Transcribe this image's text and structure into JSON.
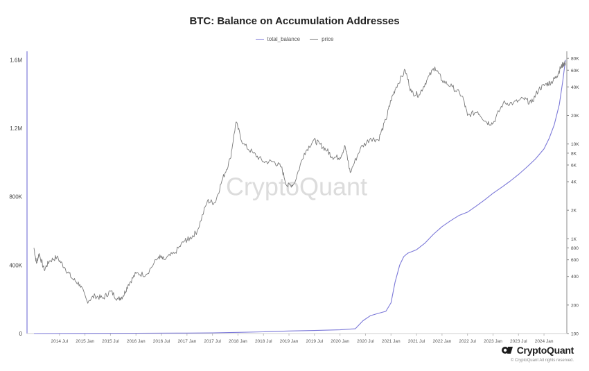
{
  "page": {
    "title": "BTC: Balance on Accumulation Addresses",
    "watermark": "CryptoQuant",
    "brand": {
      "name": "CryptoQuant",
      "copyright": "© CryptoQuant All rights reserved."
    }
  },
  "chart_data": {
    "type": "line",
    "title": "BTC: Balance on Accumulation Addresses",
    "legend_position": "top-center",
    "grid": false,
    "x_axis": {
      "range": [
        2014.0,
        2024.42
      ],
      "ticks": [
        {
          "label": "2014 Jul",
          "value": 2014.5
        },
        {
          "label": "2015 Jan",
          "value": 2015.0
        },
        {
          "label": "2015 Jul",
          "value": 2015.5
        },
        {
          "label": "2016 Jan",
          "value": 2016.0
        },
        {
          "label": "2016 Jul",
          "value": 2016.5
        },
        {
          "label": "2017 Jan",
          "value": 2017.0
        },
        {
          "label": "2017 Jul",
          "value": 2017.5
        },
        {
          "label": "2018 Jan",
          "value": 2018.0
        },
        {
          "label": "2018 Jul",
          "value": 2018.5
        },
        {
          "label": "2019 Jan",
          "value": 2019.0
        },
        {
          "label": "2019 Jul",
          "value": 2019.5
        },
        {
          "label": "2020 Jan",
          "value": 2020.0
        },
        {
          "label": "2020 Jul",
          "value": 2020.5
        },
        {
          "label": "2021 Jan",
          "value": 2021.0
        },
        {
          "label": "2021 Jul",
          "value": 2021.5
        },
        {
          "label": "2022 Jan",
          "value": 2022.0
        },
        {
          "label": "2022 Jul",
          "value": 2022.5
        },
        {
          "label": "2023 Jan",
          "value": 2023.0
        },
        {
          "label": "2023 Jul",
          "value": 2023.5
        },
        {
          "label": "2024 Jan",
          "value": 2024.0
        }
      ]
    },
    "y_left": {
      "scale": "linear",
      "range": [
        0,
        1650000
      ],
      "ticks": [
        {
          "label": "0",
          "value": 0
        },
        {
          "label": "400K",
          "value": 400000
        },
        {
          "label": "800K",
          "value": 800000
        },
        {
          "label": "1.2M",
          "value": 1200000
        },
        {
          "label": "1.6M",
          "value": 1600000
        }
      ]
    },
    "y_right": {
      "scale": "log",
      "range": [
        100,
        95000
      ],
      "ticks": [
        {
          "label": "100",
          "value": 100
        },
        {
          "label": "200",
          "value": 200
        },
        {
          "label": "400",
          "value": 400
        },
        {
          "label": "600",
          "value": 600
        },
        {
          "label": "800",
          "value": 800
        },
        {
          "label": "1K",
          "value": 1000
        },
        {
          "label": "2K",
          "value": 2000
        },
        {
          "label": "4K",
          "value": 4000
        },
        {
          "label": "6K",
          "value": 6000
        },
        {
          "label": "8K",
          "value": 8000
        },
        {
          "label": "10K",
          "value": 10000
        },
        {
          "label": "20K",
          "value": 20000
        },
        {
          "label": "40K",
          "value": 40000
        },
        {
          "label": "60K",
          "value": 60000
        },
        {
          "label": "80K",
          "value": 80000
        }
      ]
    },
    "series": [
      {
        "name": "total_balance",
        "color": "#7b78d8",
        "axis": "left",
        "x": [
          2014.0,
          2015.0,
          2016.0,
          2017.0,
          2017.5,
          2018.0,
          2018.5,
          2019.0,
          2019.5,
          2020.0,
          2020.3,
          2020.45,
          2020.6,
          2020.75,
          2020.9,
          2021.0,
          2021.08,
          2021.17,
          2021.25,
          2021.33,
          2021.5,
          2021.67,
          2021.83,
          2022.0,
          2022.17,
          2022.33,
          2022.5,
          2022.67,
          2022.83,
          2023.0,
          2023.17,
          2023.33,
          2023.5,
          2023.67,
          2023.83,
          2024.0,
          2024.1,
          2024.2,
          2024.3,
          2024.37,
          2024.42
        ],
        "values": [
          0,
          1000,
          2000,
          3000,
          4000,
          7000,
          10000,
          15000,
          18000,
          22000,
          28000,
          75000,
          105000,
          118000,
          130000,
          180000,
          300000,
          400000,
          450000,
          470000,
          490000,
          530000,
          580000,
          625000,
          660000,
          690000,
          710000,
          745000,
          780000,
          820000,
          855000,
          890000,
          930000,
          975000,
          1020000,
          1080000,
          1140000,
          1220000,
          1340000,
          1480000,
          1600000
        ]
      },
      {
        "name": "price",
        "color": "#7a7a7a",
        "axis": "right",
        "x": [
          2014.0,
          2014.05,
          2014.1,
          2014.2,
          2014.3,
          2014.45,
          2014.6,
          2014.75,
          2014.9,
          2015.04,
          2015.2,
          2015.35,
          2015.5,
          2015.65,
          2015.75,
          2015.85,
          2016.0,
          2016.2,
          2016.45,
          2016.55,
          2016.75,
          2016.95,
          2017.05,
          2017.2,
          2017.4,
          2017.55,
          2017.7,
          2017.85,
          2017.96,
          2018.1,
          2018.3,
          2018.5,
          2018.7,
          2018.85,
          2018.96,
          2019.1,
          2019.3,
          2019.48,
          2019.6,
          2019.75,
          2019.85,
          2020.0,
          2020.1,
          2020.2,
          2020.4,
          2020.6,
          2020.75,
          2020.9,
          2021.0,
          2021.1,
          2021.28,
          2021.4,
          2021.55,
          2021.7,
          2021.86,
          2022.0,
          2022.2,
          2022.4,
          2022.5,
          2022.7,
          2022.87,
          2023.0,
          2023.2,
          2023.4,
          2023.6,
          2023.75,
          2023.9,
          2024.05,
          2024.15,
          2024.25,
          2024.32,
          2024.38,
          2024.42
        ],
        "values": [
          800,
          550,
          700,
          470,
          580,
          640,
          500,
          380,
          330,
          220,
          250,
          235,
          280,
          230,
          250,
          330,
          430,
          420,
          650,
          600,
          700,
          950,
          1000,
          1200,
          2500,
          2400,
          4300,
          7000,
          17000,
          10000,
          8000,
          6500,
          6500,
          5700,
          3600,
          3800,
          8000,
          11000,
          10000,
          8500,
          7300,
          7200,
          9500,
          5000,
          9000,
          11500,
          11000,
          18000,
          29000,
          40000,
          60000,
          35000,
          33000,
          47000,
          65000,
          47000,
          40000,
          32000,
          20000,
          22000,
          17000,
          16500,
          27000,
          27000,
          30000,
          27000,
          38000,
          43000,
          45000,
          52000,
          63000,
          70000,
          71000
        ]
      }
    ]
  }
}
